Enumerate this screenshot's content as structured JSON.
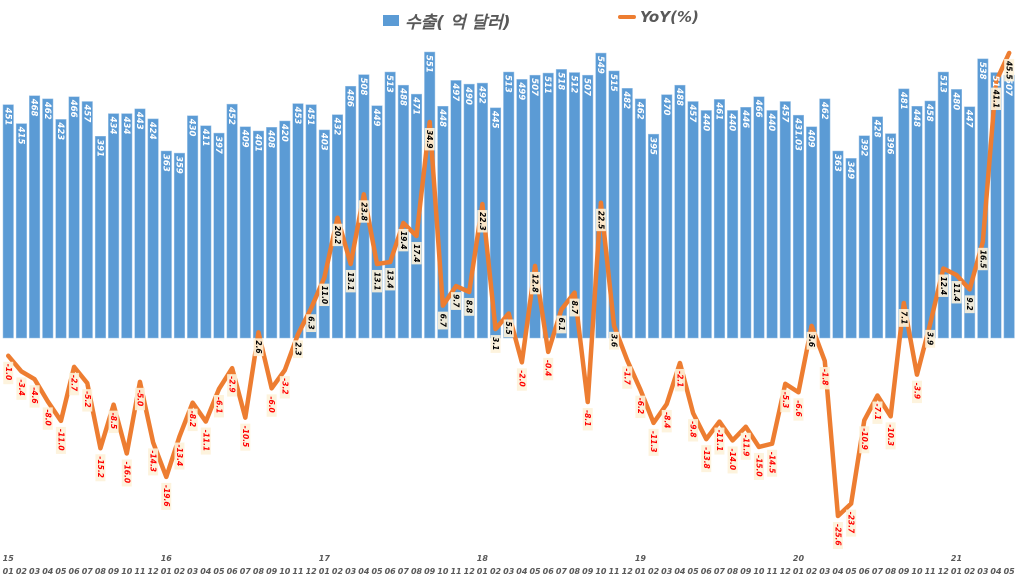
{
  "legend": {
    "bar_label": "수출( 억 달러)",
    "line_label": "YoY(%)"
  },
  "colors": {
    "bar": "#5b9bd5",
    "line": "#ed7d31",
    "label_bg": "#fdf2d9",
    "negative_text": "#ff0000",
    "positive_text": "#000000"
  },
  "chart_data": {
    "type": "bar+line",
    "title": "",
    "xlabel": "",
    "ylabel": "",
    "legend_position": "top",
    "grid": false,
    "year_labels": [
      {
        "index": 0,
        "label": "15"
      },
      {
        "index": 12,
        "label": "16"
      },
      {
        "index": 24,
        "label": "17"
      },
      {
        "index": 36,
        "label": "18"
      },
      {
        "index": 48,
        "label": "19"
      },
      {
        "index": 60,
        "label": "20"
      },
      {
        "index": 72,
        "label": "21"
      }
    ],
    "categories": [
      "01",
      "02",
      "03",
      "04",
      "05",
      "06",
      "07",
      "08",
      "09",
      "10",
      "11",
      "12",
      "01",
      "02",
      "03",
      "04",
      "05",
      "06",
      "07",
      "08",
      "09",
      "10",
      "11",
      "12",
      "01",
      "02",
      "03",
      "04",
      "05",
      "06",
      "07",
      "08",
      "09",
      "10",
      "11",
      "12",
      "01",
      "02",
      "03",
      "04",
      "05",
      "06",
      "07",
      "08",
      "09",
      "10",
      "11",
      "12",
      "01",
      "02",
      "03",
      "04",
      "05",
      "06",
      "07",
      "08",
      "09",
      "10",
      "11",
      "12",
      "01",
      "02",
      "03",
      "04",
      "05",
      "06",
      "07",
      "08",
      "09",
      "10",
      "11",
      "12",
      "01",
      "02",
      "03",
      "04",
      "05"
    ],
    "series": [
      {
        "name": "수출( 억 달러)",
        "type": "bar",
        "axis": "primary",
        "values": [
          451,
          415,
          468,
          462,
          423,
          466,
          457,
          391,
          434,
          434,
          443,
          424,
          363,
          359,
          430,
          411,
          397,
          452,
          409,
          401,
          408,
          420,
          453,
          451,
          403,
          432,
          486,
          508,
          449,
          513,
          488,
          471,
          551,
          448,
          497,
          490,
          492,
          445,
          513,
          499,
          507,
          511,
          518,
          512,
          507,
          549,
          515,
          482,
          462,
          395,
          470,
          488,
          457,
          440,
          461,
          440,
          446,
          466,
          440,
          457,
          431.03,
          409,
          462,
          363,
          349,
          392,
          428,
          396,
          481,
          448,
          458,
          513,
          480,
          447,
          538,
          512,
          507
        ]
      },
      {
        "name": "YoY(%)",
        "type": "line",
        "axis": "secondary",
        "values": [
          -1.0,
          -3.4,
          -4.6,
          -8.0,
          -11.0,
          -2.7,
          -5.2,
          -15.2,
          -8.5,
          -16.0,
          -5.0,
          -14.3,
          -19.6,
          -13.4,
          -8.2,
          -11.1,
          -6.1,
          -2.9,
          -10.5,
          2.6,
          -6.0,
          -3.2,
          2.3,
          6.3,
          11.0,
          20.2,
          13.1,
          23.8,
          13.1,
          13.4,
          19.4,
          17.4,
          34.9,
          6.7,
          9.7,
          8.8,
          22.3,
          3.1,
          5.5,
          -2.0,
          12.8,
          -0.4,
          6.1,
          8.7,
          -8.1,
          22.5,
          3.6,
          -1.7,
          -6.2,
          -11.3,
          -8.4,
          -2.1,
          -9.8,
          -13.8,
          -11.1,
          -14.0,
          -11.9,
          -15.0,
          -14.5,
          -5.3,
          -6.6,
          3.6,
          -1.8,
          -25.6,
          -23.7,
          -10.9,
          -7.1,
          -10.3,
          7.1,
          -3.9,
          3.9,
          12.4,
          11.4,
          9.2,
          16.5,
          41.1,
          45.5
        ]
      }
    ],
    "bar_labels": [
      "451",
      "415",
      "468",
      "462",
      "423",
      "466",
      "457",
      "391",
      "434",
      "434",
      "443",
      "424",
      "363",
      "359",
      "430",
      "411",
      "397",
      "452",
      "409",
      "401",
      "408",
      "420",
      "453",
      "451",
      "403",
      "432",
      "486",
      "508",
      "449",
      "513",
      "488",
      "471",
      "551",
      "448",
      "497",
      "490",
      "492",
      "445",
      "513",
      "499",
      "507",
      "511",
      "518",
      "512",
      "507",
      "549",
      "515",
      "482",
      "462",
      "395",
      "470",
      "488",
      "457",
      "440",
      "461",
      "440",
      "446",
      "466",
      "440",
      "457",
      "431.03",
      "409",
      "462",
      "363",
      "349",
      "392",
      "428",
      "396",
      "481",
      "448",
      "458",
      "513",
      "480",
      "447",
      "538",
      "512",
      "507"
    ],
    "line_labels": [
      "-1.0",
      "-3.4",
      "-4.6",
      "-8.0",
      "-11.0",
      "-2.7",
      "-5.2",
      "-15.2",
      "-8.5",
      "-16.0",
      "-5.0",
      "-14.3",
      "-19.6",
      "-13.4",
      "-8.2",
      "-11.1",
      "-6.1",
      "-2.9",
      "-10.5",
      "2.6",
      "-6.0",
      "-3.2",
      "2.3",
      "6.3",
      "11.0",
      "20.2",
      "13.1",
      "23.8",
      "13.1",
      "13.4",
      "19.4",
      "17.4",
      "34.9",
      "6.7",
      "9.7",
      "8.8",
      "22.3",
      "3.1",
      "5.5",
      "-2.0",
      "12.8",
      "-0.4",
      "6.1",
      "8.7",
      "-8.1",
      "22.5",
      "3.6",
      "-1.7",
      "-6.2",
      "-11.3",
      "-8.4",
      "-2.1",
      "-9.8",
      "-13.8",
      "-11.1",
      "-14.0",
      "-11.9",
      "-15.0",
      "-14.5",
      "-5.3",
      "-6.6",
      "3.6",
      "-1.8",
      "-25.6",
      "-23.7",
      "-10.9",
      "-7.1",
      "-10.3",
      "7.1",
      "-3.9",
      "3.9",
      "12.4",
      "11.4",
      "9.2",
      "16.5",
      "41.1",
      "45.5"
    ]
  }
}
